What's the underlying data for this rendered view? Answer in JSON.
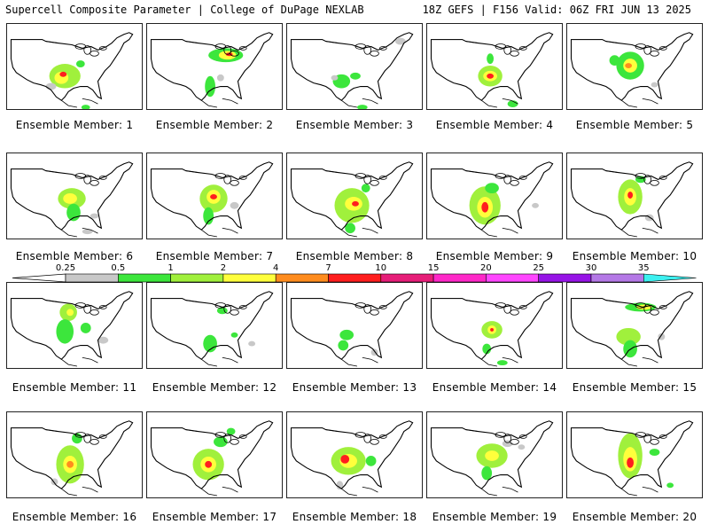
{
  "header": {
    "title": "Supercell Composite Parameter | College of DuPage NEXLAB",
    "run_info": "18Z GEFS | F156 Valid: 06Z FRI JUN 13 2025"
  },
  "label_prefix": "Ensemble Member:",
  "members": [
    "1",
    "2",
    "3",
    "4",
    "5",
    "6",
    "7",
    "8",
    "9",
    "10",
    "11",
    "12",
    "13",
    "14",
    "15",
    "16",
    "17",
    "18",
    "19",
    "20"
  ],
  "colorbar": {
    "ticks": [
      "0.25",
      "0.5",
      "1",
      "2",
      "4",
      "7",
      "10",
      "15",
      "20",
      "25",
      "30",
      "35"
    ],
    "colors": [
      "#c8c8c8",
      "#3ce63c",
      "#a0f03c",
      "#ffff3c",
      "#ff8c1e",
      "#ff1e1e",
      "#e61e78",
      "#ff28c8",
      "#ff46ff",
      "#9614e6",
      "#b478e6",
      "#3cf0f0"
    ]
  },
  "colors": {
    "gray": "#c8c8c8",
    "green": "#3ce63c",
    "lightgreen": "#a0f03c",
    "yellow": "#ffff3c",
    "orange": "#ff8c1e",
    "red": "#ff1e1e"
  }
}
